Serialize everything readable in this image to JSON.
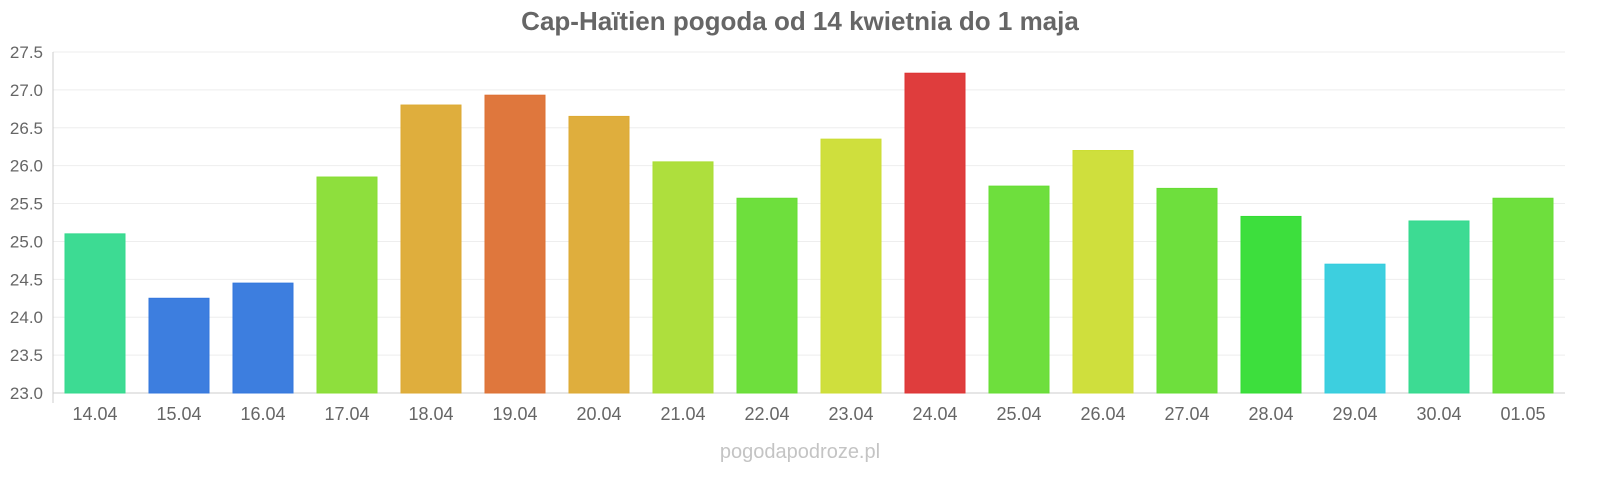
{
  "chart_data": {
    "type": "bar",
    "title": "Cap-Haïtien pogoda od 14 kwietnia do 1 maja",
    "categories": [
      "14.04",
      "15.04",
      "16.04",
      "17.04",
      "18.04",
      "19.04",
      "20.04",
      "21.04",
      "22.04",
      "23.04",
      "24.04",
      "25.04",
      "26.04",
      "27.04",
      "28.04",
      "29.04",
      "30.04",
      "01.05"
    ],
    "values": [
      25.1,
      24.25,
      24.45,
      25.85,
      26.8,
      26.93,
      26.65,
      26.05,
      25.57,
      26.35,
      27.22,
      25.73,
      26.2,
      25.7,
      25.33,
      24.7,
      25.27,
      25.57
    ],
    "colors": [
      "#33d98d",
      "#3377dd",
      "#3377dd",
      "#88dd33",
      "#ddaa33",
      "#dd7033",
      "#ddaa33",
      "#aadd33",
      "#66dd33",
      "#ccdd33",
      "#dd3333",
      "#66dd33",
      "#ccdd33",
      "#66dd33",
      "#33dd33",
      "#33ccdd",
      "#33d98d",
      "#66dd33"
    ],
    "ylim": [
      23.0,
      27.5
    ],
    "yticks": [
      "23.0",
      "23.5",
      "24.0",
      "24.5",
      "25.0",
      "25.5",
      "26.0",
      "26.5",
      "27.0",
      "27.5"
    ],
    "grid": true,
    "legend": "none"
  },
  "watermark": "pogodapodroze.pl"
}
